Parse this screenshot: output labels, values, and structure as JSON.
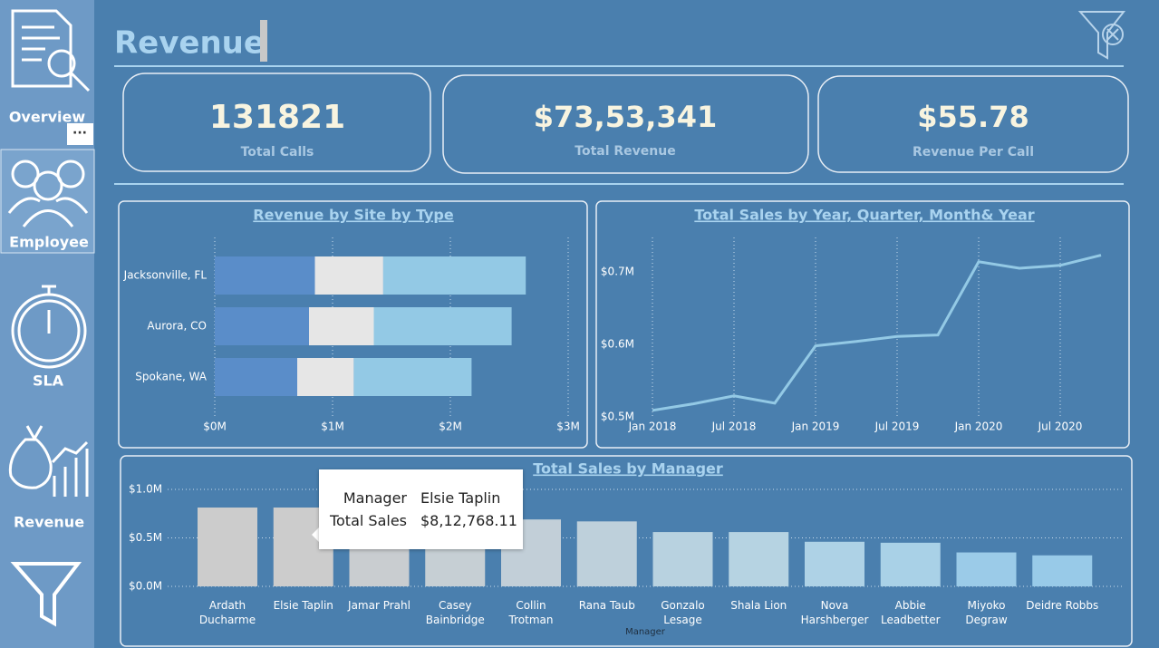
{
  "sidebar": {
    "items": [
      "Overview",
      "Employee",
      "SLA",
      "Revenue"
    ]
  },
  "header": {
    "title": "Revenue"
  },
  "kpis": [
    {
      "value": "131821",
      "label": "Total Calls"
    },
    {
      "value": "$73,53,341",
      "label": "Total Revenue"
    },
    {
      "value": "$55.78",
      "label": "Revenue Per Call"
    }
  ],
  "chart_data": [
    {
      "type": "bar",
      "orientation": "horizontal",
      "stacked": true,
      "title": "Revenue by Site by Type",
      "categories": [
        "Jacksonville, FL",
        "Aurora, CO",
        "Spokane, WA"
      ],
      "series": [
        {
          "color": "#5a8dc9",
          "values": [
            0.85,
            0.8,
            0.7
          ]
        },
        {
          "color": "#e6e6e6",
          "values": [
            0.58,
            0.55,
            0.48
          ]
        },
        {
          "color": "#93c9e5",
          "values": [
            1.21,
            1.17,
            1.0
          ]
        }
      ],
      "xlim": [
        0,
        3
      ],
      "xticks": [
        {
          "value": 0,
          "label": "$0M"
        },
        {
          "value": 1,
          "label": "$1M"
        },
        {
          "value": 2,
          "label": "$2M"
        },
        {
          "value": 3,
          "label": "$3M"
        }
      ],
      "grid": true
    },
    {
      "type": "line",
      "title": "Total Sales by Year, Quarter, Month& Year",
      "categories": [
        "Jan 2018",
        null,
        "Jul 2018",
        null,
        "Jan 2019",
        null,
        "Jul 2019",
        null,
        "Jan 2020",
        null,
        "Jul 2020",
        null
      ],
      "values": [
        0.509,
        0.518,
        0.529,
        0.519,
        0.598,
        0.604,
        0.611,
        0.613,
        0.714,
        0.705,
        0.709,
        0.723
      ],
      "color": "#93c9e5",
      "ylim": [
        0.5,
        0.75
      ],
      "yticks": [
        {
          "value": 0.5,
          "label": "$0.5M"
        },
        {
          "value": 0.6,
          "label": "$0.6M"
        },
        {
          "value": 0.7,
          "label": "$0.7M"
        }
      ],
      "grid": true
    },
    {
      "type": "bar",
      "orientation": "vertical",
      "title": "Total Sales by Manager",
      "x_label": "Manager",
      "categories": [
        "Ardath Ducharme",
        "Elsie Taplin",
        "Jamar Prahl",
        "Casey Bainbridge",
        "Collin Trotman",
        "Rana Taub",
        "Gonzalo Lesage",
        "Shala Lion",
        "Nova Harshberger",
        "Abbie Leadbetter",
        "Miyoko Degraw",
        "Deidre Robbs"
      ],
      "values": [
        0.813,
        0.813,
        0.76,
        0.72,
        0.69,
        0.67,
        0.56,
        0.56,
        0.46,
        0.45,
        0.35,
        0.32
      ],
      "colors": [
        "#cccccc",
        "#cccccc",
        "#c9cdd0",
        "#c6cfd4",
        "#c2cfd8",
        "#bed0db",
        "#b8d2e0",
        "#b6d3e2",
        "#aed2e6",
        "#a9d1e7",
        "#9bcbe8",
        "#98cae8"
      ],
      "ylim": [
        0,
        1
      ],
      "yticks": [
        {
          "value": 0,
          "label": "$0.0M"
        },
        {
          "value": 0.5,
          "label": "$0.5M"
        },
        {
          "value": 1,
          "label": "$1.0M"
        }
      ],
      "grid": true
    }
  ],
  "tooltip": {
    "rows": [
      {
        "label": "Manager",
        "value": "Elsie Taplin"
      },
      {
        "label": "Total Sales",
        "value": "$8,12,768.11"
      }
    ]
  }
}
